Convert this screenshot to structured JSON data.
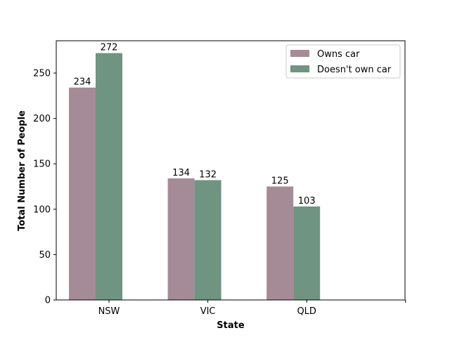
{
  "chart_data": {
    "type": "bar",
    "title": "",
    "xlabel": "State",
    "ylabel": "Total Number of People",
    "categories": [
      "NSW",
      "VIC",
      "QLD"
    ],
    "series": [
      {
        "name": "Owns car",
        "values": [
          234,
          134,
          125
        ],
        "color": "#a58b96"
      },
      {
        "name": "Doesn't own car",
        "values": [
          272,
          132,
          103
        ],
        "color": "#6f9482"
      }
    ],
    "ylim": [
      0,
      285.6
    ],
    "yticks": [
      0,
      50,
      100,
      150,
      200,
      250
    ],
    "grid": false,
    "legend_position": "top-right",
    "data_labels": true,
    "extra_empty_slot": true
  }
}
